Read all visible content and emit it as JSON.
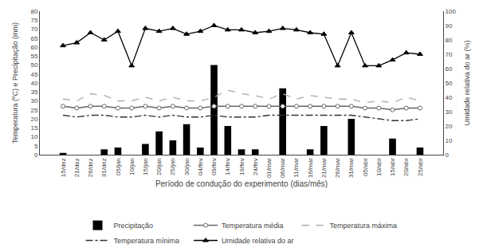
{
  "chart_data": {
    "type": "bar",
    "x_label": "Período de condução do experimento (dias/mês)",
    "y_label": "Temperatura (ºC) e Precipitação (mm)",
    "y2_label": "Umidade relativa do ar (%)",
    "categories": [
      "15/dez",
      "21/dez",
      "26/dez",
      "31/dez",
      "05/jan",
      "10/jan",
      "15/jan",
      "20/jan",
      "25/jan",
      "30/jan",
      "04/fev",
      "09/fev",
      "14/fev",
      "19/fev",
      "24/fev",
      "01/mar",
      "06/mar",
      "11/mar",
      "16/mar",
      "21/mar",
      "26/mar",
      "31/mar",
      "05/abr",
      "10/abr",
      "15/abr",
      "20/abr",
      "25/abr"
    ],
    "series": [
      {
        "name": "Precipitação",
        "type": "bar",
        "color": "#000000",
        "values": [
          1,
          0,
          0,
          3,
          4,
          0,
          6,
          13,
          8,
          17,
          4,
          50,
          16,
          3,
          3,
          0,
          37,
          0,
          3,
          16,
          0,
          20,
          0,
          0,
          9,
          0,
          4
        ]
      },
      {
        "name": "Temperatura média",
        "type": "line",
        "color": "#666666",
        "marker": "circle",
        "line_style": "solid",
        "values": [
          27,
          26,
          27,
          27,
          26,
          26,
          27,
          26,
          27,
          26,
          26,
          27,
          27,
          27,
          27,
          27,
          27,
          27,
          27,
          27,
          27,
          27,
          26,
          26,
          25,
          26,
          26
        ]
      },
      {
        "name": "Temperatura máxima",
        "type": "line",
        "color": "#aaaaaa",
        "line_style": "dashed",
        "values": [
          31,
          30,
          34,
          33,
          30,
          30,
          32,
          30,
          32,
          30,
          30,
          32,
          36,
          34,
          33,
          31,
          34,
          31,
          33,
          32,
          31,
          31,
          29,
          30,
          29,
          32,
          30
        ]
      },
      {
        "name": "Temperatura mínima",
        "type": "line",
        "color": "#333333",
        "line_style": "dashdot",
        "values": [
          22,
          21,
          22,
          22,
          21,
          21,
          22,
          21,
          22,
          21,
          21,
          22,
          21,
          21,
          21,
          22,
          22,
          22,
          22,
          22,
          22,
          22,
          21,
          20,
          19,
          19,
          20
        ]
      },
      {
        "name": "Umidade relativa do ar",
        "type": "line",
        "color": "#000000",
        "marker": "triangle",
        "line_style": "solid",
        "axis": "y2",
        "values": [
          76,
          78,
          85,
          80,
          86,
          62,
          88,
          86,
          88,
          84,
          86,
          90,
          87,
          87,
          85,
          86,
          88,
          87,
          85,
          84,
          62,
          85,
          62,
          62,
          66,
          71,
          70
        ]
      }
    ],
    "ylim": [
      0,
      80
    ],
    "yticks": [
      0,
      5,
      10,
      15,
      20,
      25,
      30,
      35,
      40,
      45,
      50,
      55,
      60,
      65,
      70,
      75,
      80
    ],
    "y2lim": [
      0,
      100
    ],
    "y2ticks": [
      0,
      10,
      20,
      30,
      40,
      50,
      60,
      70,
      80,
      90,
      100
    ],
    "grid": false,
    "legend": "bottom"
  }
}
